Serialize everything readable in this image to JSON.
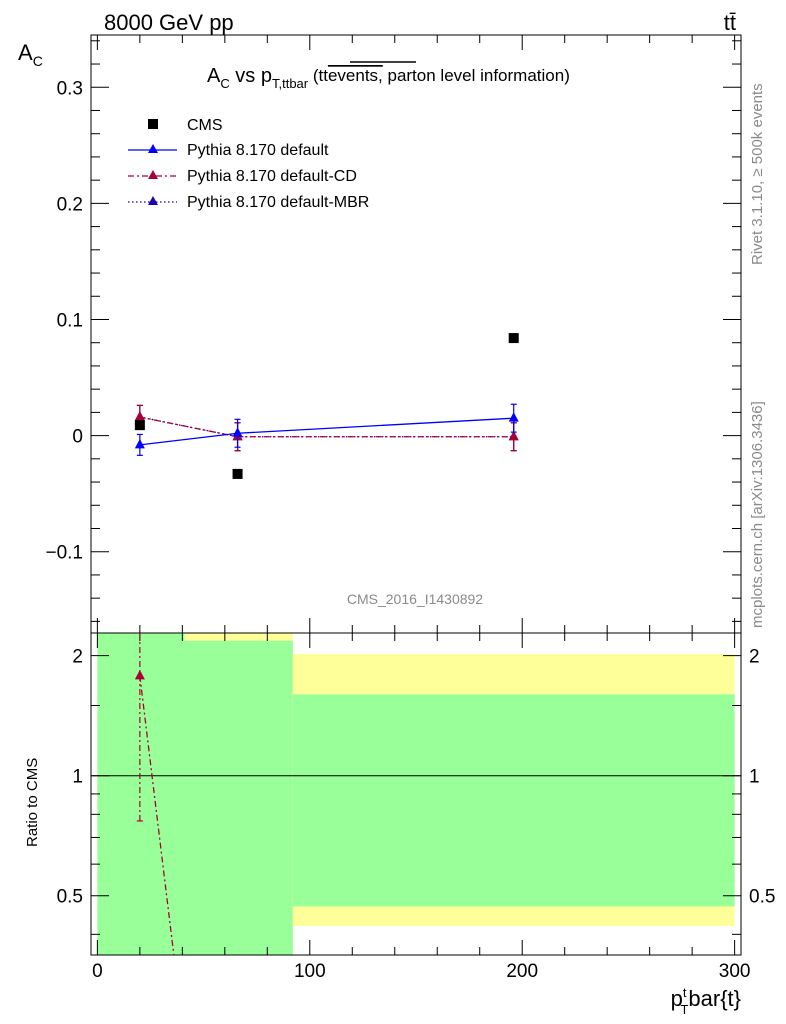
{
  "header": {
    "left": "8000 GeV pp",
    "right": "tt̄"
  },
  "title": {
    "main": "A",
    "main_sub": "C",
    "vs": " vs p",
    "vs_sub": "T,ttbar",
    "paren_open": " (",
    "tt": "tt",
    "events": "events,",
    "info": " parton level information)"
  },
  "side_text": {
    "rivet": "Rivet 3.1.10, ≥ 500k events",
    "mcplots": "mcplots.cern.ch [arXiv:1306.3436]"
  },
  "watermark": "CMS_2016_I1430892",
  "axes": {
    "ylabel_main": "A",
    "ylabel_main_sub": "C",
    "ylabel_ratio": "Ratio to CMS",
    "xlabel_p": "p",
    "xlabel_sup": "t",
    "xlabel_sub": "T",
    "xlabel_rest": "bar{t}"
  },
  "legend": [
    {
      "label": "CMS"
    },
    {
      "label": "Pythia 8.170 default"
    },
    {
      "label": "Pythia 8.170 default-CD"
    },
    {
      "label": "Pythia 8.170 default-MBR"
    }
  ],
  "colors": {
    "cms": "#000000",
    "default": "#0000ff",
    "cd": "#aa0033",
    "mbr": "#2200aa",
    "band_green": "#99ff99",
    "band_yellow": "#ffff99"
  },
  "chart_data": [
    {
      "type": "scatter",
      "panel": "main",
      "xlim": [
        -3,
        303
      ],
      "ylim": [
        -0.17,
        0.345
      ],
      "yticks": [
        -0.1,
        0,
        0.1,
        0.2,
        0.3
      ],
      "ytick_labels": [
        "−0.1",
        "0",
        "0.1",
        "0.2",
        "0.3"
      ],
      "series": [
        {
          "name": "CMS",
          "marker": "square",
          "x": [
            20,
            66,
            196
          ],
          "y": [
            0.009,
            -0.033,
            0.084
          ]
        },
        {
          "name": "Pythia 8.170 default",
          "marker": "triangle",
          "line": "solid",
          "x": [
            20,
            66,
            196
          ],
          "y": [
            -0.008,
            0.002,
            0.015
          ],
          "err": [
            0.009,
            0.012,
            0.012
          ]
        },
        {
          "name": "Pythia 8.170 default-CD",
          "marker": "triangle",
          "line": "dashdot",
          "x": [
            20,
            66,
            196
          ],
          "y": [
            0.016,
            -0.001,
            -0.001
          ],
          "err": [
            0.01,
            0.012,
            0.012
          ]
        },
        {
          "name": "Pythia 8.170 default-MBR",
          "marker": "triangle",
          "line": "dotted",
          "x": [
            20,
            66,
            196
          ],
          "y": [
            0.016,
            -0.001,
            -0.001
          ],
          "err": [
            0.01,
            0.012,
            0.012
          ]
        }
      ]
    },
    {
      "type": "ratio",
      "panel": "ratio",
      "xlim": [
        -3,
        303
      ],
      "ylim": [
        0.355,
        2.28
      ],
      "yticks": [
        0.5,
        1,
        2
      ],
      "ytick_labels": [
        "0.5",
        "1",
        "2"
      ],
      "xticks": [
        0,
        100,
        200,
        300
      ],
      "xtick_labels": [
        "0",
        "100",
        "200",
        "300"
      ],
      "bands": [
        {
          "x0": 0,
          "x1": 41,
          "yellow": [
            0.355,
            2.28
          ],
          "green": [
            0.355,
            2.28
          ]
        },
        {
          "x0": 41,
          "x1": 92,
          "yellow": [
            0.355,
            2.28
          ],
          "green": [
            0.355,
            2.18
          ]
        },
        {
          "x0": 92,
          "x1": 300,
          "yellow": [
            0.42,
            2.02
          ],
          "green": [
            0.47,
            1.6
          ]
        }
      ],
      "series": [
        {
          "name": "Pythia 8.170 default-CD",
          "x": [
            20,
            36
          ],
          "y": [
            1.78,
            0.355
          ],
          "err_low": [
            0.77
          ],
          "err_high": [
            2.28
          ]
        }
      ]
    }
  ]
}
